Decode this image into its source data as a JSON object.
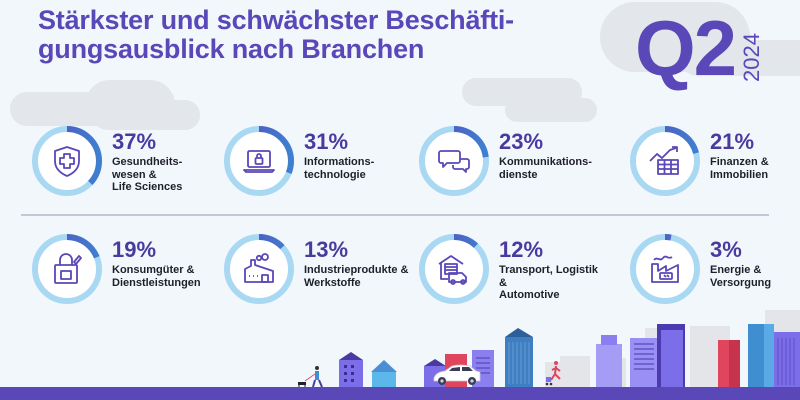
{
  "header": {
    "title_line1": "Stärkster und schwächster Beschäfti-",
    "title_line2": "gungsausblick nach Branchen",
    "quarter": "Q2",
    "year": "2024"
  },
  "colors": {
    "brand_purple": "#5a47b8",
    "ring_track": "#a9d8f3",
    "ring_fill_purple": "#5a47b8",
    "ring_fill_blue": "#3f7fd0",
    "background": "#f2f7fc",
    "cloud": "#e3e6ea"
  },
  "sectors": [
    {
      "value": 37,
      "pct": "37%",
      "label": "Gesundheits-\nwesen &\nLife Sciences",
      "icon": "shield-cross-icon"
    },
    {
      "value": 31,
      "pct": "31%",
      "label": "Informations-\ntechnologie",
      "icon": "laptop-lock-icon"
    },
    {
      "value": 23,
      "pct": "23%",
      "label": "Kommunikations-\ndienste",
      "icon": "chat-bubbles-icon"
    },
    {
      "value": 21,
      "pct": "21%",
      "label": "Finanzen &\nImmobilien",
      "icon": "chart-table-icon"
    },
    {
      "value": 19,
      "pct": "19%",
      "label": "Konsumgüter &\nDienstleistungen",
      "icon": "shopping-bag-icon"
    },
    {
      "value": 13,
      "pct": "13%",
      "label": "Industrieprodukte &\nWerkstoffe",
      "icon": "factory-icon"
    },
    {
      "value": 12,
      "pct": "12%",
      "label": "Transport, Logistik &\nAutomotive",
      "icon": "warehouse-truck-icon"
    },
    {
      "value": 3,
      "pct": "3%",
      "label": "Energie &\nVersorgung",
      "icon": "energy-plant-icon"
    }
  ],
  "chart_data": {
    "type": "donut-grid",
    "title": "Stärkster und schwächster Beschäftigungsausblick nach Branchen",
    "subtitle": "Q2 2024",
    "categories": [
      "Gesundheitswesen & Life Sciences",
      "Informationstechnologie",
      "Kommunikationsdienste",
      "Finanzen & Immobilien",
      "Konsumgüter & Dienstleistungen",
      "Industrieprodukte & Werkstoffe",
      "Transport, Logistik & Automotive",
      "Energie & Versorgung"
    ],
    "values": [
      37,
      31,
      23,
      21,
      19,
      13,
      12,
      3
    ],
    "unit": "%"
  }
}
